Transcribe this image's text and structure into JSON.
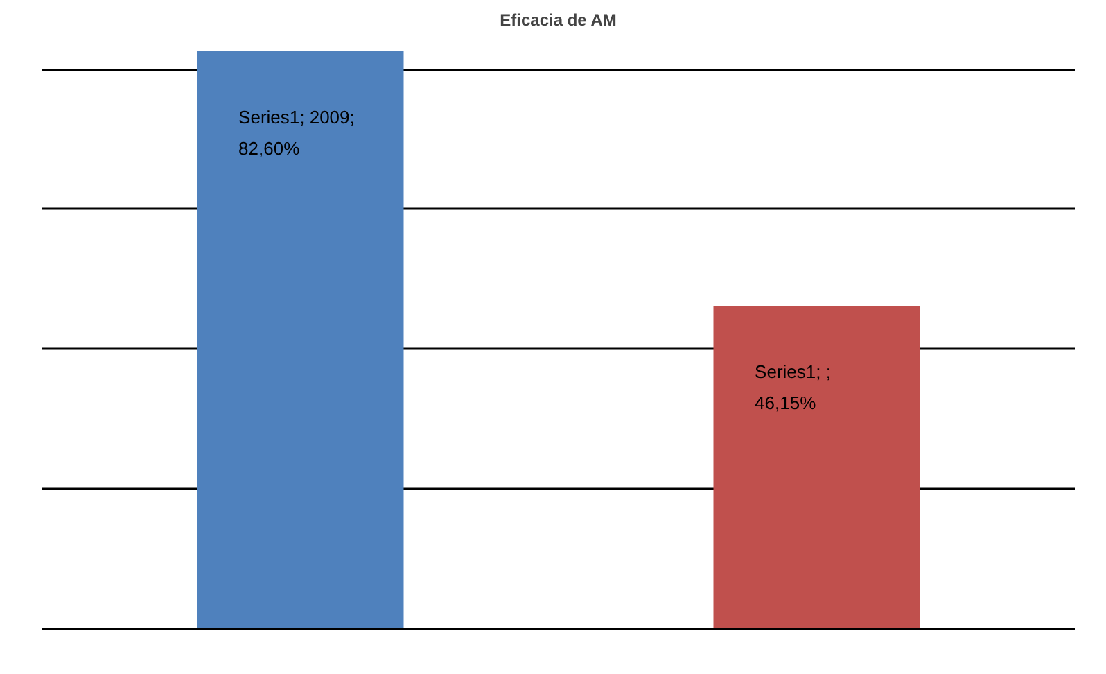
{
  "chart_data": {
    "type": "bar",
    "title": "Eficacia de AM",
    "categories": [
      null,
      null
    ],
    "series": [
      {
        "colors": [
          "#4f81bd",
          "#c0504d"
        ],
        "values": [
          82.6,
          46.15
        ],
        "value_labels": [
          "Series1; 2009; 82,60%",
          "Series1; ; 46,15%"
        ]
      }
    ],
    "grid": "y"
  }
}
